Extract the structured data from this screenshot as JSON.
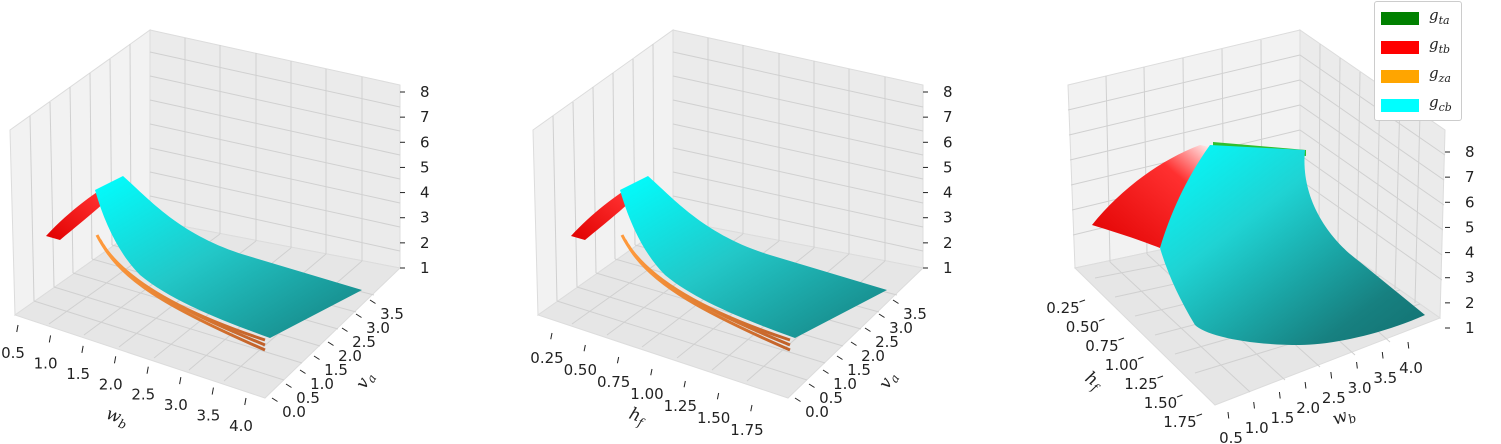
{
  "chart_data": [
    {
      "type": "surface3d",
      "xlabel": "w_b",
      "ylabel": "v_a",
      "x_ticks": [
        "0.5",
        "1.0",
        "1.5",
        "2.0",
        "2.5",
        "3.0",
        "3.5",
        "4.0"
      ],
      "y_ticks": [
        "0.0",
        "0.5",
        "1.0",
        "1.5",
        "2.0",
        "2.5",
        "3.0",
        "3.5"
      ],
      "z_ticks": [
        "1",
        "2",
        "3",
        "4",
        "5",
        "6",
        "7",
        "8"
      ],
      "zlim": [
        1,
        8
      ]
    },
    {
      "type": "surface3d",
      "xlabel": "h_f",
      "ylabel": "v_a",
      "x_ticks": [
        "0.25",
        "0.50",
        "0.75",
        "1.00",
        "1.25",
        "1.50",
        "1.75"
      ],
      "y_ticks": [
        "0.0",
        "0.5",
        "1.0",
        "1.5",
        "2.0",
        "2.5",
        "3.0",
        "3.5"
      ],
      "z_ticks": [
        "1",
        "2",
        "3",
        "4",
        "5",
        "6",
        "7",
        "8"
      ],
      "zlim": [
        1,
        8
      ]
    },
    {
      "type": "surface3d",
      "xlabel": "h_f",
      "ylabel": "w_b",
      "x_ticks": [
        "0.25",
        "0.50",
        "0.75",
        "1.00",
        "1.25",
        "1.50",
        "1.75"
      ],
      "y_ticks": [
        "0.5",
        "1.0",
        "1.5",
        "2.0",
        "2.5",
        "3.0",
        "3.5",
        "4.0"
      ],
      "z_ticks": [
        "1",
        "2",
        "3",
        "4",
        "5",
        "6",
        "7",
        "8"
      ],
      "zlim": [
        1,
        8
      ]
    }
  ],
  "legend": [
    {
      "base": "g",
      "sub": "ta",
      "color": "#008000"
    },
    {
      "base": "g",
      "sub": "tb",
      "color": "#ff0000"
    },
    {
      "base": "g",
      "sub": "za",
      "color": "#ffa500"
    },
    {
      "base": "g",
      "sub": "cb",
      "color": "#00ffff"
    }
  ]
}
